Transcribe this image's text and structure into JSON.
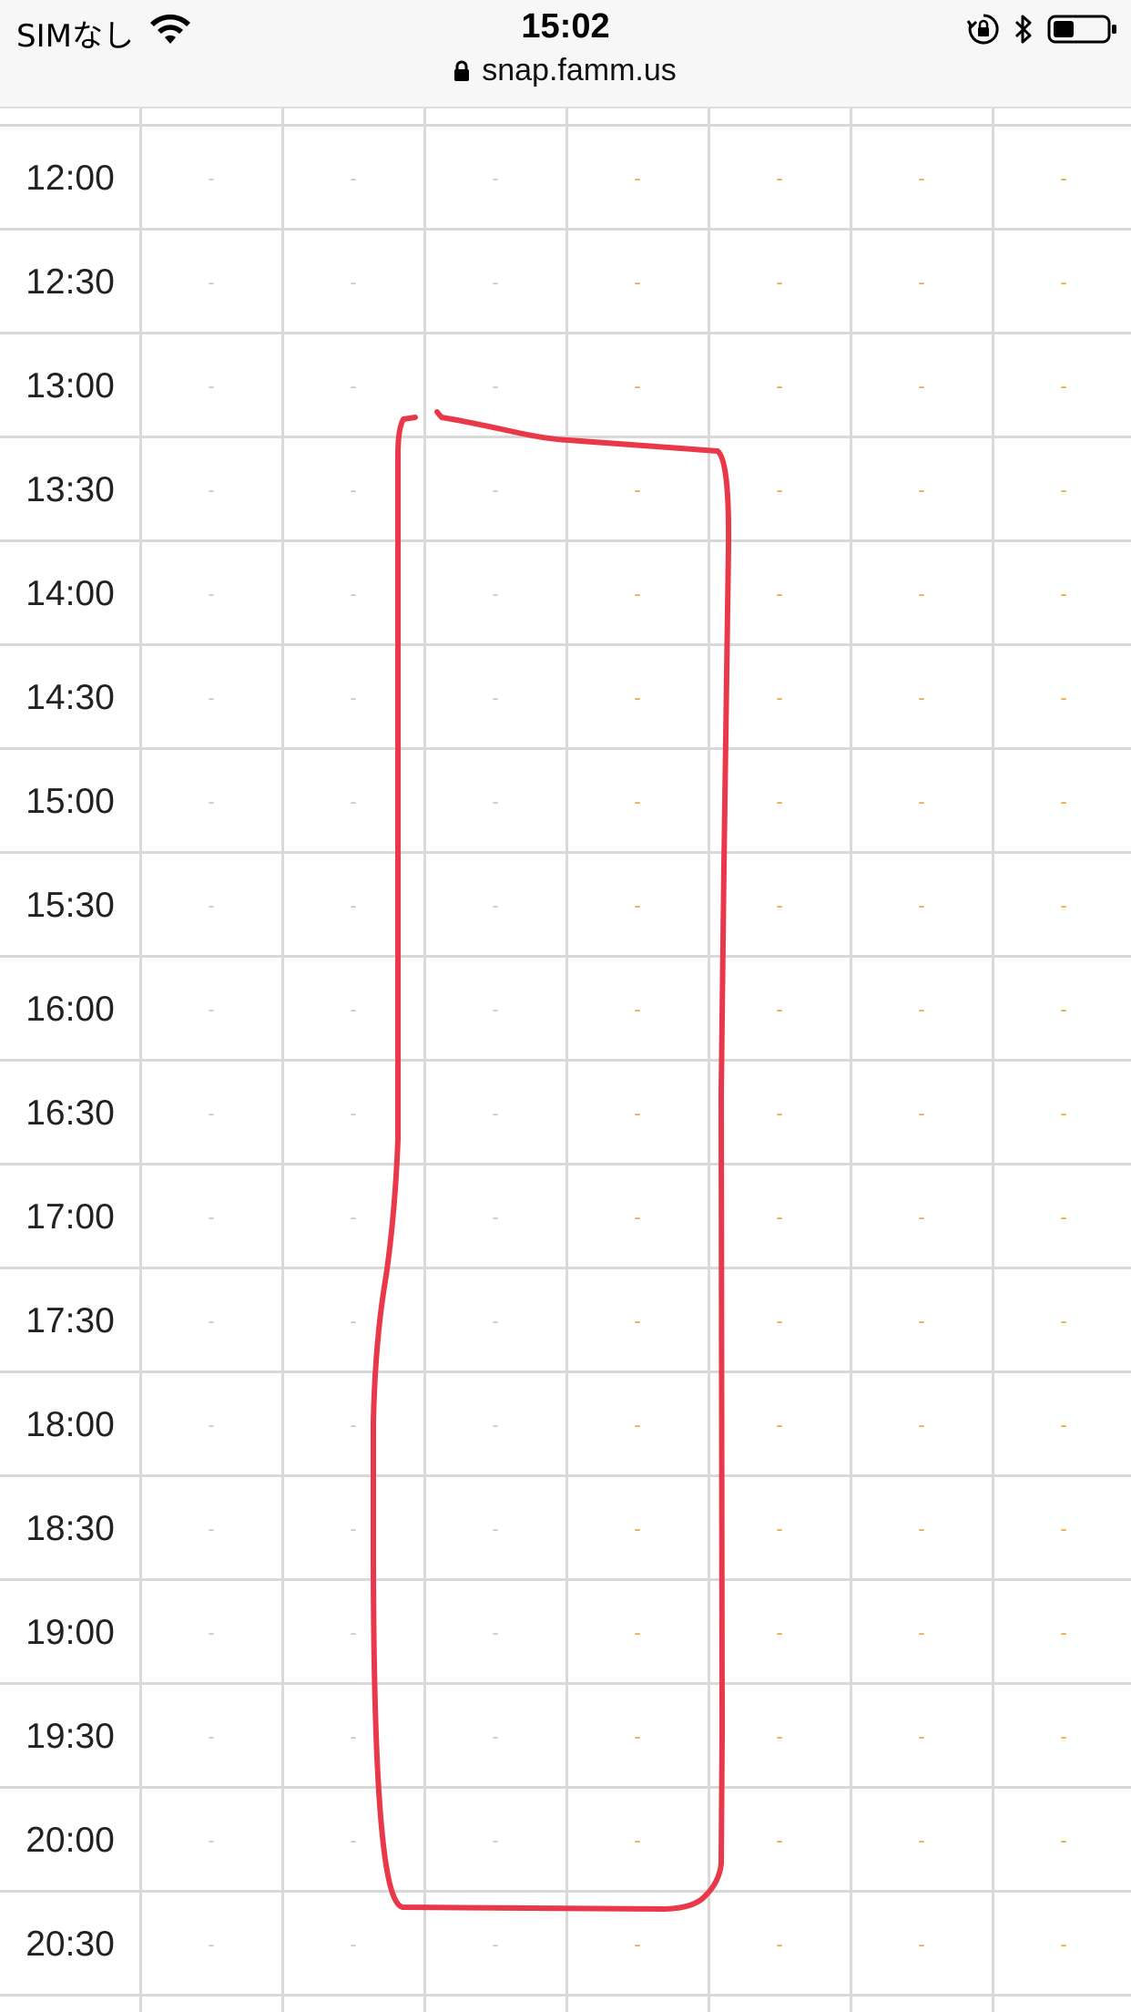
{
  "status_bar": {
    "carrier": "SIMなし",
    "time": "15:02",
    "url": "snap.famm.us",
    "icons": [
      "wifi-icon",
      "lock-icon",
      "orientation-lock-icon",
      "bluetooth-icon",
      "battery-icon"
    ]
  },
  "schedule": {
    "cell_mark": "-",
    "colors": {
      "gray_mark": "#c9c9c9",
      "orange_mark": "#f0a63a",
      "annotation": "#e8384a",
      "grid": "#d9d9d9"
    },
    "rows": [
      {
        "time": "12:00"
      },
      {
        "time": "12:30"
      },
      {
        "time": "13:00"
      },
      {
        "time": "13:30"
      },
      {
        "time": "14:00"
      },
      {
        "time": "14:30"
      },
      {
        "time": "15:00"
      },
      {
        "time": "15:30"
      },
      {
        "time": "16:00"
      },
      {
        "time": "16:30"
      },
      {
        "time": "17:00"
      },
      {
        "time": "17:30"
      },
      {
        "time": "18:00"
      },
      {
        "time": "18:30"
      },
      {
        "time": "19:00"
      },
      {
        "time": "19:30"
      },
      {
        "time": "20:00"
      },
      {
        "time": "20:30"
      }
    ]
  }
}
